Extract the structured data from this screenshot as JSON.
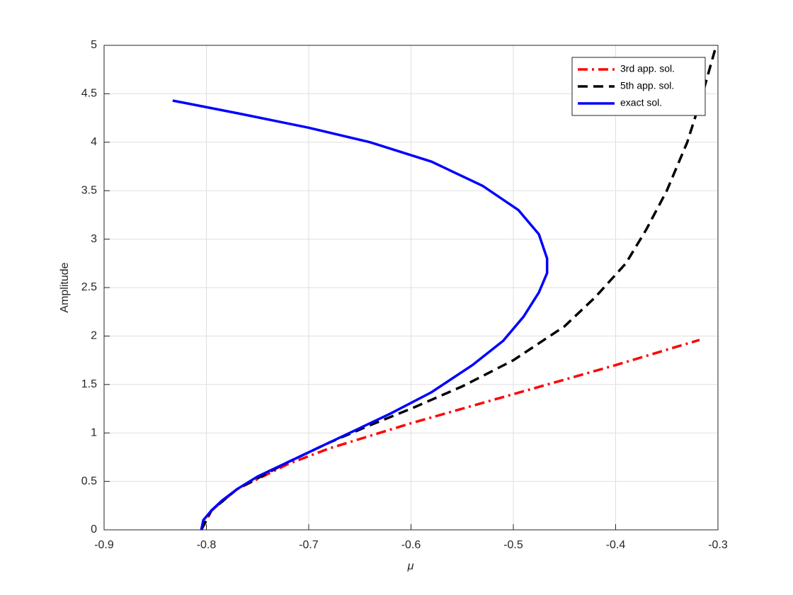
{
  "chart_data": {
    "type": "line",
    "xlabel": "μ",
    "ylabel": "Amplitude",
    "xlim": [
      -0.9,
      -0.3
    ],
    "xticks": [
      -0.9,
      -0.8,
      -0.7,
      -0.6,
      -0.5,
      -0.4,
      -0.3
    ],
    "ylim": [
      0,
      5
    ],
    "yticks": [
      0,
      0.5,
      1,
      1.5,
      2,
      2.5,
      3,
      3.5,
      4,
      4.5,
      5
    ],
    "grid": true,
    "legend": "upper right",
    "series": [
      {
        "name": "3rd app. sol.",
        "color": "#ff0000",
        "line_style": "dashdot",
        "x": [
          -0.805,
          -0.795,
          -0.77,
          -0.72,
          -0.68,
          -0.6,
          -0.5,
          -0.4,
          -0.318
        ],
        "values": [
          0,
          0.2,
          0.42,
          0.68,
          0.84,
          1.1,
          1.4,
          1.7,
          1.96
        ]
      },
      {
        "name": "5th app. sol.",
        "color": "#000000",
        "line_style": "dashed",
        "x": [
          -0.805,
          -0.795,
          -0.77,
          -0.72,
          -0.68,
          -0.64,
          -0.6,
          -0.55,
          -0.5,
          -0.45,
          -0.42,
          -0.39,
          -0.37,
          -0.35,
          -0.33,
          -0.315,
          -0.303
        ],
        "values": [
          0,
          0.2,
          0.42,
          0.7,
          0.9,
          1.08,
          1.25,
          1.48,
          1.75,
          2.1,
          2.4,
          2.75,
          3.1,
          3.5,
          4.0,
          4.5,
          4.95
        ]
      },
      {
        "name": "exact sol.",
        "color": "#0000ff",
        "line_style": "solid",
        "x": [
          -0.805,
          -0.803,
          -0.795,
          -0.785,
          -0.77,
          -0.75,
          -0.72,
          -0.69,
          -0.66,
          -0.62,
          -0.58,
          -0.54,
          -0.51,
          -0.49,
          -0.475,
          -0.467,
          -0.467,
          -0.475,
          -0.495,
          -0.53,
          -0.58,
          -0.64,
          -0.7,
          -0.77,
          -0.833
        ],
        "values": [
          0,
          0.1,
          0.2,
          0.3,
          0.42,
          0.55,
          0.7,
          0.85,
          1.0,
          1.2,
          1.42,
          1.7,
          1.95,
          2.2,
          2.45,
          2.65,
          2.8,
          3.05,
          3.3,
          3.55,
          3.8,
          4.0,
          4.15,
          4.3,
          4.43
        ]
      }
    ]
  }
}
